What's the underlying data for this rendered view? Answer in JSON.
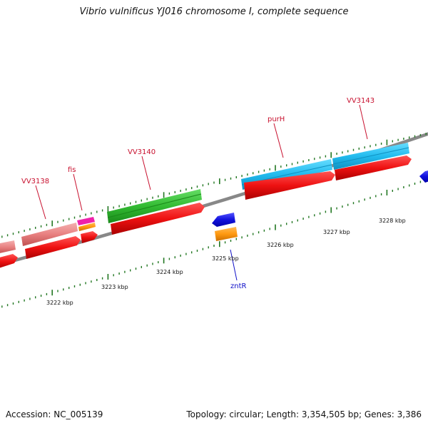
{
  "title": "Vibrio vulnificus YJ016 chromosome I, complete sequence",
  "footer": {
    "accession": "Accession: NC_005139",
    "summary": "Topology: circular; Length: 3,354,505 bp; Genes: 3,386"
  },
  "kbp_labels": [
    "3222 kbp",
    "3223 kbp",
    "3224 kbp",
    "3225 kbp",
    "3226 kbp",
    "3227 kbp",
    "3228 kbp"
  ],
  "gene_labels": [
    {
      "id": "vv3138",
      "text": "VV3138",
      "color": "red"
    },
    {
      "id": "fis",
      "text": "fis",
      "color": "red"
    },
    {
      "id": "vv3140",
      "text": "VV3140",
      "color": "red"
    },
    {
      "id": "purh",
      "text": "purH",
      "color": "red"
    },
    {
      "id": "vv3143",
      "text": "VV3143",
      "color": "red"
    },
    {
      "id": "zntr",
      "text": "zntR",
      "color": "blue"
    }
  ],
  "colors": {
    "cds": "#ee1111",
    "salmon_gene": "#e88080",
    "green_gene": "#33bb33",
    "cyan_gene": "#22bbee",
    "blue_gene": "#1111dd",
    "orange_gene": "#ff9910",
    "magenta_gene": "#ee22aa",
    "backbone": "#888888",
    "ticks": "#227722",
    "label_red": "#c8102e",
    "label_blue": "#1010c8"
  }
}
